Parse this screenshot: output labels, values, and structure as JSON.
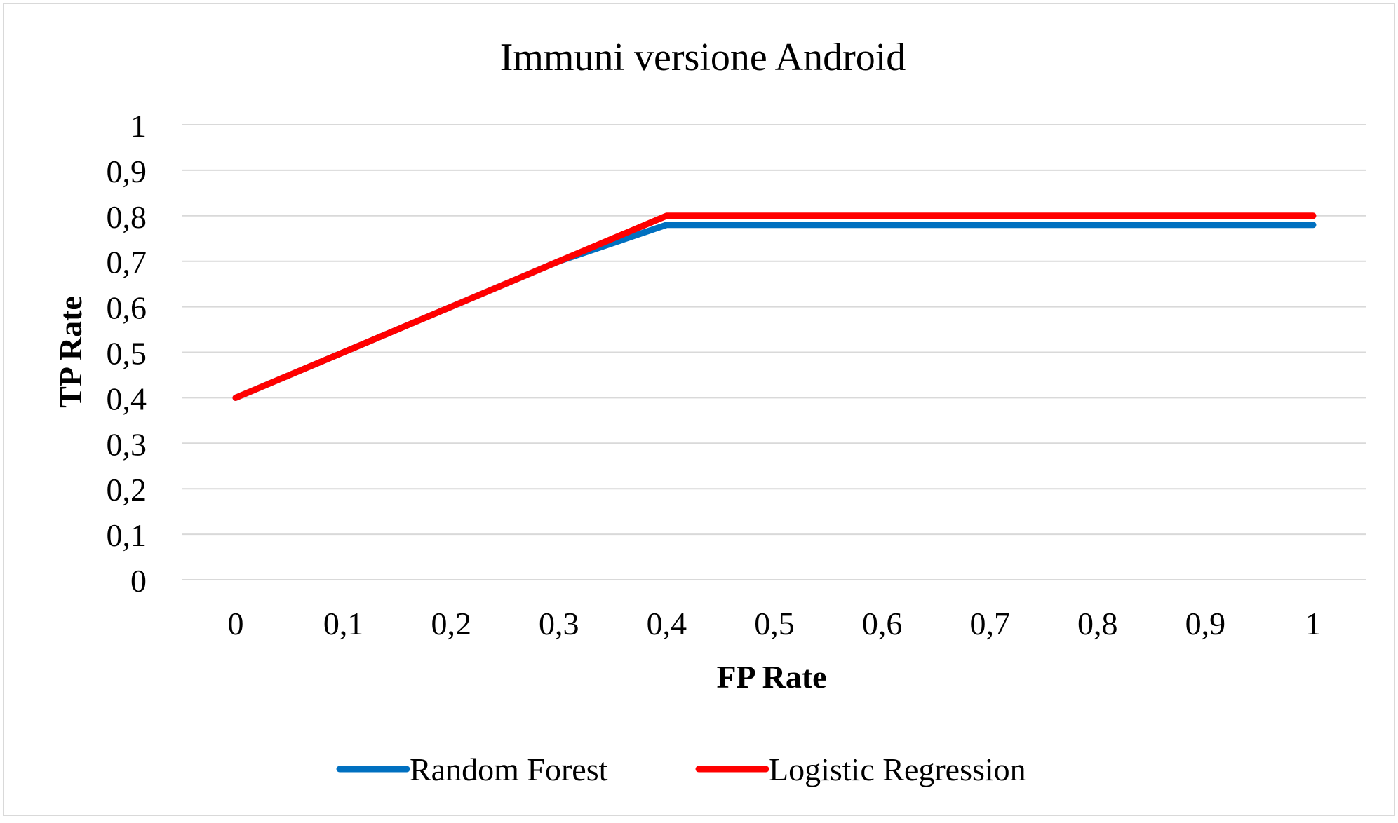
{
  "chart_data": {
    "type": "line",
    "title": "Immuni versione Android",
    "xlabel": "FP Rate",
    "ylabel": "TP Rate",
    "x": [
      0,
      0.1,
      0.2,
      0.3,
      0.4,
      0.5,
      0.6,
      0.7,
      0.8,
      0.9,
      1
    ],
    "x_tick_labels": [
      "0",
      "0,1",
      "0,2",
      "0,3",
      "0,4",
      "0,5",
      "0,6",
      "0,7",
      "0,8",
      "0,9",
      "1"
    ],
    "y_ticks": [
      0,
      0.1,
      0.2,
      0.3,
      0.4,
      0.5,
      0.6,
      0.7,
      0.8,
      0.9,
      1
    ],
    "y_tick_labels": [
      "0",
      "0,1",
      "0,2",
      "0,3",
      "0,4",
      "0,5",
      "0,6",
      "0,7",
      "0,8",
      "0,9",
      "1"
    ],
    "ylim": [
      0,
      1
    ],
    "grid": true,
    "legend_position": "bottom",
    "series": [
      {
        "name": "Random Forest",
        "color": "#0070c0",
        "values": [
          0.4,
          0.5,
          0.6,
          0.7,
          0.78,
          0.78,
          0.78,
          0.78,
          0.78,
          0.78,
          0.78
        ]
      },
      {
        "name": "Logistic Regression",
        "color": "#ff0000",
        "values": [
          0.4,
          0.5,
          0.6,
          0.7,
          0.8,
          0.8,
          0.8,
          0.8,
          0.8,
          0.8,
          0.8
        ]
      }
    ]
  }
}
